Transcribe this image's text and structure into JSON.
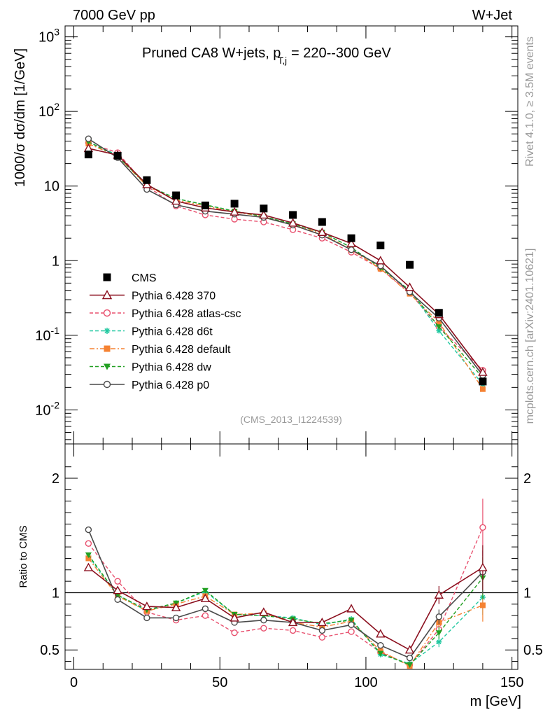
{
  "header": {
    "left": "7000 GeV pp",
    "right": "W+Jet"
  },
  "side_labels": {
    "top": "Rivet 4.1.0, ≥ 3.5M events",
    "bottom": "mcplots.cern.ch [arXiv:2401.10621]"
  },
  "title": {
    "main": "Pruned CA8 W+jets, p",
    "sub": "T,j",
    "tail": " = 220--300 GeV"
  },
  "analysis_tag": "(CMS_2013_I1224539)",
  "colors": {
    "CMS": "#000000",
    "p370": "#8b0f1e",
    "atlas": "#e8506e",
    "d6t": "#20c8a0",
    "default": "#f58232",
    "dw": "#22a022",
    "p0": "#4a4a4a"
  },
  "chart_data": [
    {
      "type": "line",
      "panel": "main",
      "title": "Pruned CA8 W+jets, pT,j = 220--300 GeV",
      "ylabel": "1000/σ dσ/dm [1/GeV]",
      "yscale": "log",
      "xlim": [
        -3,
        152
      ],
      "ylim": [
        0.0035,
        1400
      ],
      "y_ticks": [
        "10^-2",
        "10^-1",
        "1",
        "10",
        "10^2",
        "10^3"
      ],
      "x": [
        5,
        15,
        25,
        35,
        45,
        55,
        65,
        75,
        85,
        95,
        105,
        115,
        125,
        140
      ],
      "series": [
        {
          "name": "CMS",
          "key": "CMS",
          "values": [
            26.5,
            25.5,
            12,
            7.5,
            5.5,
            5.8,
            5.0,
            4.1,
            3.3,
            2.0,
            1.6,
            0.88,
            0.2,
            0.024
          ]
        },
        {
          "name": "Pythia 6.428 370",
          "key": "p370",
          "values": [
            32,
            26,
            10.5,
            6.3,
            5.1,
            4.5,
            4.1,
            3.2,
            2.4,
            1.7,
            1.0,
            0.44,
            0.19,
            0.032
          ]
        },
        {
          "name": "Pythia 6.428 atlas-csc",
          "key": "atlas",
          "values": [
            38,
            28,
            10,
            5.4,
            4.1,
            3.6,
            3.3,
            2.6,
            2.0,
            1.3,
            0.78,
            0.37,
            0.13,
            0.034
          ]
        },
        {
          "name": "Pythia 6.428 d6t",
          "key": "d6t",
          "values": [
            39,
            26,
            10.2,
            6.8,
            5.6,
            4.6,
            3.9,
            3.1,
            2.4,
            1.5,
            0.8,
            0.4,
            0.115,
            0.022
          ]
        },
        {
          "name": "Pythia 6.428 default",
          "key": "default",
          "values": [
            37,
            25,
            10,
            6.5,
            5.4,
            4.5,
            3.9,
            3.0,
            2.3,
            1.4,
            0.78,
            0.36,
            0.15,
            0.019
          ]
        },
        {
          "name": "Pythia 6.428 dw",
          "key": "dw",
          "values": [
            39,
            25,
            10.3,
            6.8,
            5.6,
            4.6,
            3.9,
            3.1,
            2.4,
            1.5,
            0.8,
            0.4,
            0.13,
            0.027
          ]
        },
        {
          "name": "Pythia 6.428 p0",
          "key": "p0",
          "values": [
            43,
            24,
            9,
            5.6,
            4.6,
            4.2,
            3.8,
            3.0,
            2.2,
            1.4,
            0.85,
            0.38,
            0.17,
            0.029
          ]
        }
      ]
    },
    {
      "type": "line",
      "panel": "ratio",
      "ylabel": "Ratio to CMS",
      "xlabel": "m [GeV]",
      "xlim": [
        -3,
        152
      ],
      "ylim": [
        0.33,
        2.3
      ],
      "x_ticks": [
        "0",
        "50",
        "100",
        "150"
      ],
      "y_ticks": [
        "0.5",
        "1",
        "2"
      ],
      "reference_line": 1,
      "x": [
        5,
        15,
        25,
        35,
        45,
        55,
        65,
        75,
        85,
        95,
        105,
        115,
        125,
        140
      ],
      "series": [
        {
          "name": "Pythia 6.428 370",
          "key": "p370",
          "values": [
            1.22,
            1.02,
            0.88,
            0.87,
            0.95,
            0.78,
            0.83,
            0.74,
            0.74,
            0.86,
            0.64,
            0.5,
            0.98,
            1.22
          ]
        },
        {
          "name": "Pythia 6.428 atlas-csc",
          "key": "atlas",
          "values": [
            1.43,
            1.1,
            0.83,
            0.76,
            0.8,
            0.65,
            0.69,
            0.67,
            0.61,
            0.66,
            0.48,
            0.37,
            0.68,
            1.57
          ]
        },
        {
          "name": "Pythia 6.428 d6t",
          "key": "d6t",
          "values": [
            1.32,
            0.98,
            0.84,
            0.91,
            1.01,
            0.81,
            0.8,
            0.78,
            0.72,
            0.77,
            0.46,
            0.38,
            0.57,
            0.96
          ]
        },
        {
          "name": "Pythia 6.428 default",
          "key": "default",
          "values": [
            1.3,
            0.97,
            0.84,
            0.9,
            0.97,
            0.81,
            0.82,
            0.74,
            0.7,
            0.75,
            0.49,
            0.36,
            0.74,
            0.89
          ]
        },
        {
          "name": "Pythia 6.428 dw",
          "key": "dw",
          "values": [
            1.33,
            0.98,
            0.85,
            0.91,
            1.02,
            0.81,
            0.8,
            0.77,
            0.73,
            0.76,
            0.47,
            0.37,
            0.65,
            1.13
          ]
        },
        {
          "name": "Pythia 6.428 p0",
          "key": "p0",
          "values": [
            1.55,
            0.94,
            0.78,
            0.78,
            0.86,
            0.74,
            0.76,
            0.74,
            0.67,
            0.72,
            0.54,
            0.43,
            0.79,
            1.18
          ]
        }
      ]
    }
  ]
}
